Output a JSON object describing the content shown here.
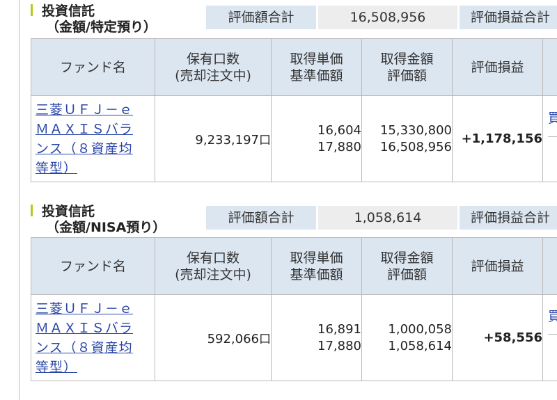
{
  "sections": [
    {
      "title_line1": "投資信託",
      "title_line2": "（金額/特定預り）",
      "total_label": "評価額合計",
      "total_value": "16,508,956",
      "pl_total_label": "評価損益合計",
      "headers": {
        "fund": "ファンド名",
        "units_l1": "保有口数",
        "units_l2": "(売却注文中)",
        "cost_l1": "取得単価",
        "cost_l2": "基準価額",
        "amount_l1": "取得金額",
        "amount_l2": "評価額",
        "pl": "評価損益"
      },
      "rows": [
        {
          "fund_l1": "三菱ＵＦＪ－ｅ",
          "fund_l2": "ＭＡＸＩＳバラ",
          "fund_l3": "ンス（８資産均",
          "fund_l4": "等型）",
          "units": "9,233,197",
          "unit_suffix": "口",
          "unit_cost": "16,604",
          "nav": "17,880",
          "cost_amount": "15,330,800",
          "eval_amount": "16,508,956",
          "pl": "+1,178,156",
          "action_partial": "買"
        }
      ]
    },
    {
      "title_line1": "投資信託",
      "title_line2": "（金額/NISA預り）",
      "total_label": "評価額合計",
      "total_value": "1,058,614",
      "pl_total_label": "評価損益合計",
      "headers": {
        "fund": "ファンド名",
        "units_l1": "保有口数",
        "units_l2": "(売却注文中)",
        "cost_l1": "取得単価",
        "cost_l2": "基準価額",
        "amount_l1": "取得金額",
        "amount_l2": "評価額",
        "pl": "評価損益"
      },
      "rows": [
        {
          "fund_l1": "三菱ＵＦＪ－ｅ",
          "fund_l2": "ＭＡＸＩＳバラ",
          "fund_l3": "ンス（８資産均",
          "fund_l4": "等型）",
          "units": "592,066",
          "unit_suffix": "口",
          "unit_cost": "16,891",
          "nav": "17,880",
          "cost_amount": "1,000,058",
          "eval_amount": "1,058,614",
          "pl": "+58,556",
          "action_partial": "買"
        }
      ]
    }
  ],
  "colors": {
    "header_bg": "#dce6f1",
    "value_bg": "#ededed",
    "accent": "#b7c820",
    "link": "#2946a8",
    "gain": "#e0252c"
  }
}
